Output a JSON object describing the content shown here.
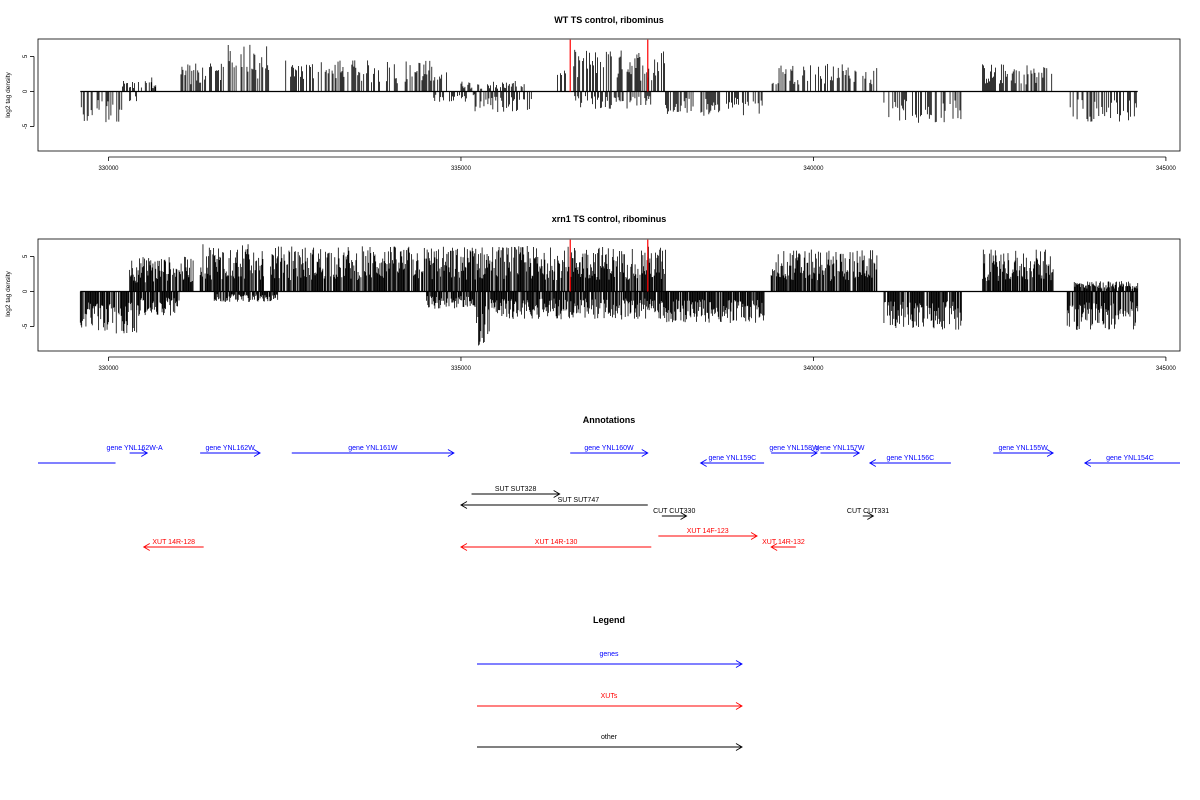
{
  "chart_data": [
    {
      "type": "bar",
      "title": "WT TS control, ribominus",
      "ylabel": "log2 tag density",
      "xlim": [
        329000,
        345200
      ],
      "ylim": [
        -8.5,
        7.5
      ],
      "x_ticks": [
        "330000",
        "335000",
        "340000",
        "345000"
      ],
      "y_ticks": [
        "-5",
        "0",
        "5"
      ],
      "x_range_start": 329600,
      "x_range_end": 344600,
      "marker_lines": [
        336550,
        337650
      ],
      "marker_color": "#ff0000",
      "bar_color": "#000000",
      "plus_strand_segments": [
        {
          "start": 330200,
          "end": 330700,
          "max": 1.5
        },
        {
          "start": 330600,
          "end": 330700,
          "max": 3.5
        },
        {
          "start": 331000,
          "end": 331600,
          "max": 4.0
        },
        {
          "start": 331600,
          "end": 332300,
          "max": 6.8
        },
        {
          "start": 332500,
          "end": 334800,
          "max": 4.5
        },
        {
          "start": 335000,
          "end": 335900,
          "max": 1.5
        },
        {
          "start": 336300,
          "end": 336500,
          "max": 3.0
        },
        {
          "start": 336600,
          "end": 337900,
          "max": 6.0
        },
        {
          "start": 339400,
          "end": 340900,
          "max": 4.0
        },
        {
          "start": 342400,
          "end": 343400,
          "max": 4.0
        }
      ],
      "minus_strand_segments": [
        {
          "start": 329600,
          "end": 330200,
          "max": -4.5
        },
        {
          "start": 330300,
          "end": 330400,
          "max": -1.5
        },
        {
          "start": 334600,
          "end": 335200,
          "max": -1.5
        },
        {
          "start": 335200,
          "end": 336000,
          "max": -3.0
        },
        {
          "start": 336600,
          "end": 337700,
          "max": -2.5
        },
        {
          "start": 337900,
          "end": 339300,
          "max": -3.5
        },
        {
          "start": 341000,
          "end": 342100,
          "max": -4.5
        },
        {
          "start": 343600,
          "end": 344600,
          "max": -4.5
        }
      ]
    },
    {
      "type": "bar",
      "title": "xrn1 TS control, ribominus",
      "ylabel": "log2 tag density",
      "xlim": [
        329000,
        345200
      ],
      "ylim": [
        -8.5,
        7.5
      ],
      "x_ticks": [
        "330000",
        "335000",
        "340000",
        "345000"
      ],
      "y_ticks": [
        "-5",
        "0",
        "5"
      ],
      "x_range_start": 329600,
      "x_range_end": 344600,
      "marker_lines": [
        336550,
        337650
      ],
      "marker_color": "#ff0000",
      "bar_color": "#000000",
      "plus_strand_segments": [
        {
          "start": 330300,
          "end": 331200,
          "max": 5.0
        },
        {
          "start": 331300,
          "end": 332200,
          "max": 6.8
        },
        {
          "start": 332300,
          "end": 334800,
          "max": 6.5
        },
        {
          "start": 334800,
          "end": 337900,
          "max": 6.5
        },
        {
          "start": 339400,
          "end": 340900,
          "max": 6.0
        },
        {
          "start": 342400,
          "end": 343400,
          "max": 6.0
        },
        {
          "start": 343700,
          "end": 344600,
          "max": 1.5
        }
      ],
      "minus_strand_segments": [
        {
          "start": 329600,
          "end": 330400,
          "max": -6.0
        },
        {
          "start": 330400,
          "end": 331000,
          "max": -3.5
        },
        {
          "start": 331500,
          "end": 332400,
          "max": -1.5
        },
        {
          "start": 334500,
          "end": 335200,
          "max": -2.5
        },
        {
          "start": 335200,
          "end": 335400,
          "max": -8.0
        },
        {
          "start": 335400,
          "end": 336600,
          "max": -4.0
        },
        {
          "start": 336600,
          "end": 337900,
          "max": -4.0
        },
        {
          "start": 337900,
          "end": 339300,
          "max": -4.5
        },
        {
          "start": 341000,
          "end": 342100,
          "max": -5.5
        },
        {
          "start": 343600,
          "end": 344600,
          "max": -5.5
        }
      ]
    }
  ],
  "annotations": {
    "title": "Annotations",
    "colors": {
      "genes": "#0000ff",
      "XUTs": "#ff0000",
      "other": "#000000"
    },
    "features": [
      {
        "label": "",
        "start": 329000,
        "end": 330100,
        "strand": "+",
        "kind": "genes",
        "row": 1,
        "arrow": false
      },
      {
        "label": "gene YNL162W-A",
        "start": 330300,
        "end": 330550,
        "strand": "+",
        "kind": "genes",
        "row": 0
      },
      {
        "label": "gene YNL162W",
        "start": 331300,
        "end": 332150,
        "strand": "+",
        "kind": "genes",
        "row": 0
      },
      {
        "label": "gene YNL161W",
        "start": 332600,
        "end": 334900,
        "strand": "+",
        "kind": "genes",
        "row": 0
      },
      {
        "label": "gene YNL160W",
        "start": 336550,
        "end": 337650,
        "strand": "+",
        "kind": "genes",
        "row": 0
      },
      {
        "label": "gene YNL159C",
        "start": 338400,
        "end": 339300,
        "strand": "-",
        "kind": "genes",
        "row": 1
      },
      {
        "label": "gene YNL158W",
        "start": 339400,
        "end": 340050,
        "strand": "+",
        "kind": "genes",
        "row": 0
      },
      {
        "label": "gene YNL157W",
        "start": 340100,
        "end": 340650,
        "strand": "+",
        "kind": "genes",
        "row": 0
      },
      {
        "label": "gene YNL156C",
        "start": 340800,
        "end": 341950,
        "strand": "-",
        "kind": "genes",
        "row": 1
      },
      {
        "label": "gene YNL155W",
        "start": 342550,
        "end": 343400,
        "strand": "+",
        "kind": "genes",
        "row": 0
      },
      {
        "label": "gene YNL154C",
        "start": 343850,
        "end": 345200,
        "strand": "-",
        "kind": "genes",
        "row": 1
      },
      {
        "label": "SUT SUT328",
        "start": 335150,
        "end": 336400,
        "strand": "+",
        "kind": "other",
        "row": 2
      },
      {
        "label": "SUT SUT747",
        "start": 335000,
        "end": 337650,
        "strand": "-",
        "kind": "other",
        "row": 3
      },
      {
        "label": "CUT CUT330",
        "start": 337850,
        "end": 338200,
        "strand": "+",
        "kind": "other",
        "row": 4
      },
      {
        "label": "CUT CUT331",
        "start": 340700,
        "end": 340850,
        "strand": "+",
        "kind": "other",
        "row": 4
      },
      {
        "label": "XUT 14F-123",
        "start": 337800,
        "end": 339200,
        "strand": "+",
        "kind": "XUTs",
        "row": 5
      },
      {
        "label": "XUT 14R-128",
        "start": 330500,
        "end": 331350,
        "strand": "-",
        "kind": "XUTs",
        "row": 6
      },
      {
        "label": "XUT 14R-130",
        "start": 335000,
        "end": 337700,
        "strand": "-",
        "kind": "XUTs",
        "row": 6
      },
      {
        "label": "XUT 14R-132",
        "start": 339400,
        "end": 339750,
        "strand": "-",
        "kind": "XUTs",
        "row": 6
      }
    ]
  },
  "legend": {
    "title": "Legend",
    "items": [
      {
        "label": "genes",
        "color": "#0000ff"
      },
      {
        "label": "XUTs",
        "color": "#ff0000"
      },
      {
        "label": "other",
        "color": "#000000"
      }
    ]
  }
}
